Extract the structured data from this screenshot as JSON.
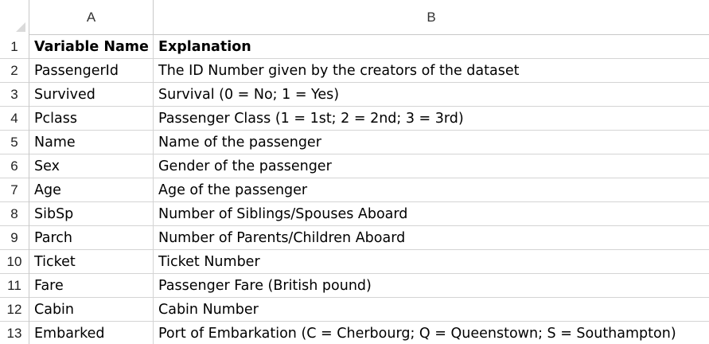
{
  "columns": {
    "a": "A",
    "b": "B"
  },
  "rows": [
    {
      "num": "1",
      "a": "Variable Name",
      "b": "Explanation"
    },
    {
      "num": "2",
      "a": "PassengerId",
      "b": "The ID Number given by the creators of the dataset"
    },
    {
      "num": "3",
      "a": "Survived",
      "b": "Survival (0 = No; 1 = Yes)"
    },
    {
      "num": "4",
      "a": "Pclass",
      "b": "Passenger Class (1 = 1st; 2 = 2nd; 3 = 3rd)"
    },
    {
      "num": "5",
      "a": "Name",
      "b": "Name of the passenger"
    },
    {
      "num": "6",
      "a": "Sex",
      "b": "Gender of the passenger"
    },
    {
      "num": "7",
      "a": "Age",
      "b": "Age of the passenger"
    },
    {
      "num": "8",
      "a": "SibSp",
      "b": "Number of Siblings/Spouses Aboard"
    },
    {
      "num": "9",
      "a": "Parch",
      "b": "Number of Parents/Children Aboard"
    },
    {
      "num": "10",
      "a": "Ticket",
      "b": "Ticket Number"
    },
    {
      "num": "11",
      "a": "Fare",
      "b": "Passenger Fare (British pound)"
    },
    {
      "num": "12",
      "a": "Cabin",
      "b": "Cabin Number"
    },
    {
      "num": "13",
      "a": "Embarked",
      "b": "Port of Embarkation (C = Cherbourg; Q = Queenstown; S = Southampton)"
    }
  ]
}
